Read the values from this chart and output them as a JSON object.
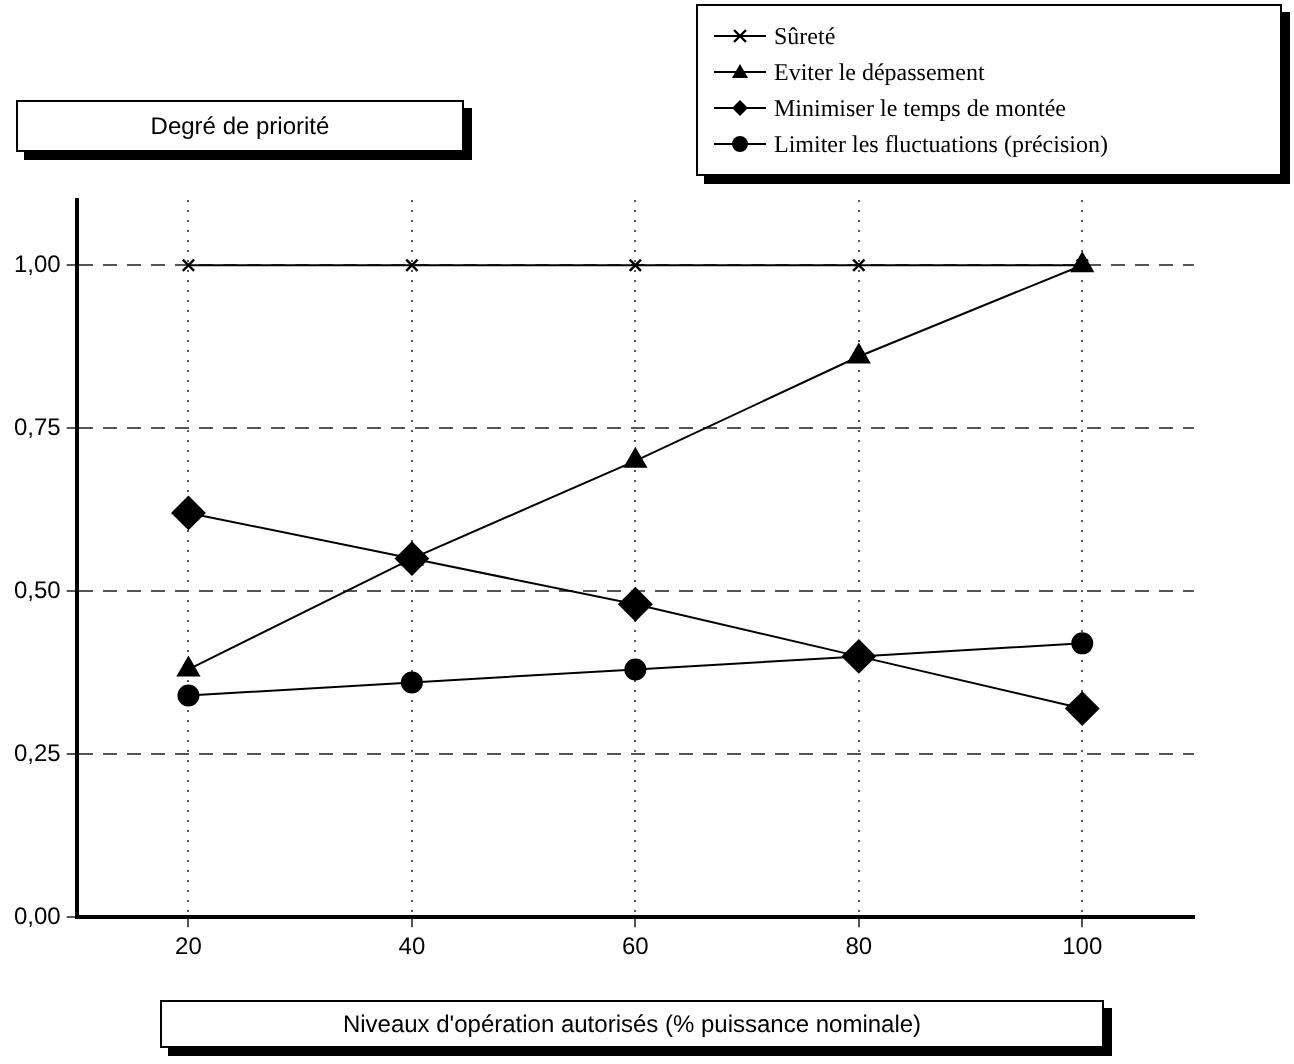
{
  "chart_data": {
    "type": "line",
    "ylabel": "Degré de priorité",
    "xlabel": "Niveaux d'opération autorisés (% puissance nominale)",
    "x": [
      20,
      40,
      60,
      80,
      100
    ],
    "series": [
      {
        "name": "Sûreté",
        "color": "#000000",
        "marker": "cross",
        "values": [
          1,
          1,
          1,
          1,
          1
        ]
      },
      {
        "name": "Eviter le dépassement",
        "color": "#000000",
        "marker": "triangle",
        "values": [
          0.38,
          0.55,
          0.7,
          0.86,
          1.0
        ]
      },
      {
        "name": "Minimiser le temps de montée",
        "color": "#000000",
        "marker": "diamond",
        "values": [
          0.62,
          0.55,
          0.48,
          0.4,
          0.32
        ]
      },
      {
        "name": "Limiter les fluctuations (précision)",
        "color": "#000000",
        "marker": "circle",
        "values": [
          0.34,
          0.36,
          0.38,
          0.4,
          0.42
        ]
      }
    ],
    "xlim": [
      10,
      110
    ],
    "xticks": [
      20,
      40,
      60,
      80,
      100
    ],
    "ylim": [
      0,
      1.1
    ],
    "yticks": [
      {
        "value": 0,
        "label": "0,00"
      },
      {
        "value": 0.25,
        "label": "0,25"
      },
      {
        "value": 0.5,
        "label": "0,50"
      },
      {
        "value": 0.75,
        "label": "0,75"
      },
      {
        "value": 1,
        "label": "1,00"
      }
    ],
    "grid": true,
    "legend": "top right",
    "line_style": "solid"
  }
}
